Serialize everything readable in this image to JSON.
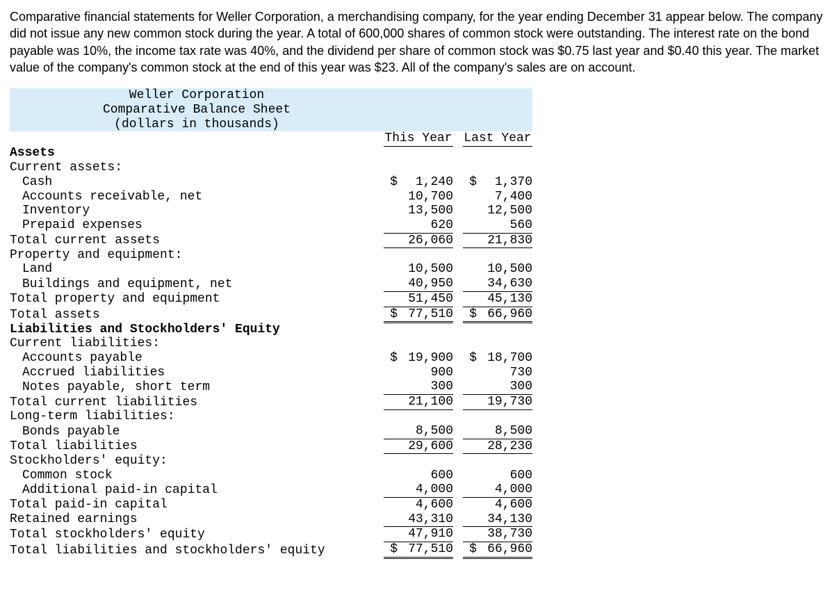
{
  "intro": "Comparative financial statements for Weller Corporation, a merchandising company, for the year ending December 31 appear below. The company did not issue any new common stock during the year. A total of 600,000 shares of common stock were outstanding. The interest rate on the bond payable was 10%, the income tax rate was 40%, and the dividend per share of common stock was $0.75 last year and $0.40 this year. The market value of the company's common stock at the end of this year was $23. All of the company's sales are on account.",
  "title": {
    "l1": "Weller Corporation",
    "l2": "Comparative Balance Sheet",
    "l3": "(dollars in thousands)"
  },
  "cols": {
    "thisYear": "This Year",
    "lastYear": "Last Year"
  },
  "labels": {
    "assets": "Assets",
    "currentAssets": "Current assets:",
    "cash": "Cash",
    "ar": "Accounts receivable, net",
    "inventory": "Inventory",
    "prepaid": "Prepaid expenses",
    "totCurAssets": "Total current assets",
    "ppe": "Property and equipment:",
    "land": "Land",
    "bldg": "Buildings and equipment, net",
    "totPPE": "Total property and equipment",
    "totAssets": "Total assets",
    "liabEq": "Liabilities and Stockholders' Equity",
    "curLiab": "Current liabilities:",
    "ap": "Accounts payable",
    "accrued": "Accrued liabilities",
    "notes": "Notes payable, short term",
    "totCurLiab": "Total current liabilities",
    "ltLiab": "Long-term liabilities:",
    "bonds": "Bonds payable",
    "totLiab": "Total liabilities",
    "se": "Stockholders' equity:",
    "common": "Common stock",
    "apic": "Additional paid-in capital",
    "totPaidIn": "Total paid-in capital",
    "re": "Retained earnings",
    "totSE": "Total stockholders' equity",
    "totLiabSE": "Total liabilities and stockholders' equity"
  },
  "v": {
    "cash": {
      "ty_s": "$",
      "ty": "1,240",
      "ly_s": "$",
      "ly": "1,370"
    },
    "ar": {
      "ty_s": "",
      "ty": "10,700",
      "ly_s": "",
      "ly": "7,400"
    },
    "inventory": {
      "ty_s": "",
      "ty": "13,500",
      "ly_s": "",
      "ly": "12,500"
    },
    "prepaid": {
      "ty_s": "",
      "ty": "620",
      "ly_s": "",
      "ly": "560"
    },
    "totCurAssets": {
      "ty_s": "",
      "ty": "26,060",
      "ly_s": "",
      "ly": "21,830"
    },
    "land": {
      "ty_s": "",
      "ty": "10,500",
      "ly_s": "",
      "ly": "10,500"
    },
    "bldg": {
      "ty_s": "",
      "ty": "40,950",
      "ly_s": "",
      "ly": "34,630"
    },
    "totPPE": {
      "ty_s": "",
      "ty": "51,450",
      "ly_s": "",
      "ly": "45,130"
    },
    "totAssets": {
      "ty_s": "$",
      "ty": "77,510",
      "ly_s": "$",
      "ly": "66,960"
    },
    "ap": {
      "ty_s": "$",
      "ty": "19,900",
      "ly_s": "$",
      "ly": "18,700"
    },
    "accrued": {
      "ty_s": "",
      "ty": "900",
      "ly_s": "",
      "ly": "730"
    },
    "notes": {
      "ty_s": "",
      "ty": "300",
      "ly_s": "",
      "ly": "300"
    },
    "totCurLiab": {
      "ty_s": "",
      "ty": "21,100",
      "ly_s": "",
      "ly": "19,730"
    },
    "bonds": {
      "ty_s": "",
      "ty": "8,500",
      "ly_s": "",
      "ly": "8,500"
    },
    "totLiab": {
      "ty_s": "",
      "ty": "29,600",
      "ly_s": "",
      "ly": "28,230"
    },
    "common": {
      "ty_s": "",
      "ty": "600",
      "ly_s": "",
      "ly": "600"
    },
    "apic": {
      "ty_s": "",
      "ty": "4,000",
      "ly_s": "",
      "ly": "4,000"
    },
    "totPaidIn": {
      "ty_s": "",
      "ty": "4,600",
      "ly_s": "",
      "ly": "4,600"
    },
    "re": {
      "ty_s": "",
      "ty": "43,310",
      "ly_s": "",
      "ly": "34,130"
    },
    "totSE": {
      "ty_s": "",
      "ty": "47,910",
      "ly_s": "",
      "ly": "38,730"
    },
    "totLiabSE": {
      "ty_s": "$",
      "ty": "77,510",
      "ly_s": "$",
      "ly": "66,960"
    }
  }
}
